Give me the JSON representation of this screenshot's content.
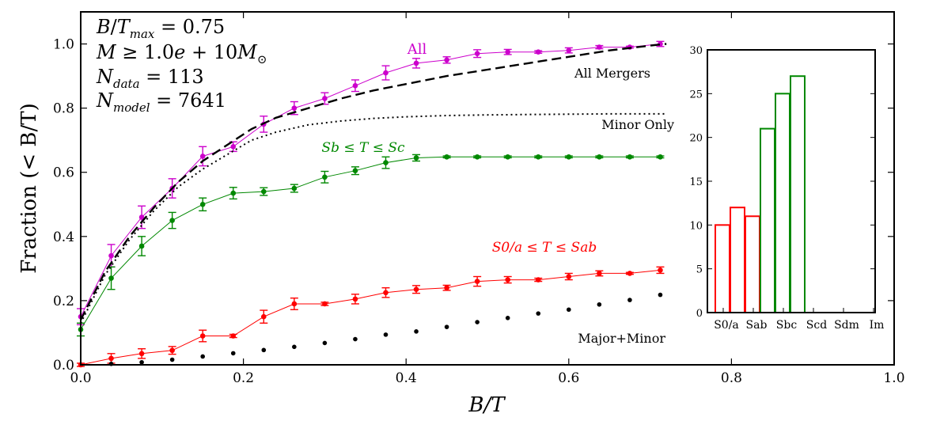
{
  "chart_data": [
    {
      "type": "line",
      "xlabel": "B/T",
      "ylabel": "Fraction (< B/T)",
      "xlim": [
        0.0,
        1.0
      ],
      "ylim": [
        0.0,
        1.1
      ],
      "x_ticks": [
        "0.0",
        "0.2",
        "0.4",
        "0.6",
        "0.8",
        "1.0"
      ],
      "y_ticks": [
        "0.0",
        "0.2",
        "0.4",
        "0.6",
        "0.8",
        "1.0"
      ],
      "info_lines": [
        "B/T_max = 0.75",
        "M ≥ 1.0e+10M_⊙",
        "N_data = 113",
        "N_model = 7641"
      ],
      "series": [
        {
          "name": "All",
          "color": "#cc00cc",
          "style": "solid-with-markers-errorbars",
          "x": [
            0.0,
            0.0375,
            0.075,
            0.1125,
            0.15,
            0.1875,
            0.225,
            0.2625,
            0.3,
            0.3375,
            0.375,
            0.4125,
            0.45,
            0.4875,
            0.525,
            0.5625,
            0.6,
            0.6375,
            0.675,
            0.7125
          ],
          "y": [
            0.15,
            0.34,
            0.46,
            0.55,
            0.65,
            0.68,
            0.75,
            0.8,
            0.83,
            0.87,
            0.91,
            0.94,
            0.95,
            0.97,
            0.975,
            0.975,
            0.98,
            0.99,
            0.99,
            1.0
          ],
          "err": [
            0.025,
            0.035,
            0.035,
            0.03,
            0.03,
            0.015,
            0.025,
            0.02,
            0.018,
            0.018,
            0.022,
            0.015,
            0.01,
            0.012,
            0.008,
            0.004,
            0.008,
            0.005,
            0.003,
            0.008
          ]
        },
        {
          "name": "Sb ≤ T ≤ Sc",
          "color": "#008800",
          "style": "solid-with-markers-errorbars",
          "x": [
            0.0,
            0.0375,
            0.075,
            0.1125,
            0.15,
            0.1875,
            0.225,
            0.2625,
            0.3,
            0.3375,
            0.375,
            0.4125,
            0.45,
            0.4875,
            0.525,
            0.5625,
            0.6,
            0.6375,
            0.675,
            0.7125
          ],
          "y": [
            0.11,
            0.27,
            0.37,
            0.45,
            0.5,
            0.535,
            0.54,
            0.55,
            0.585,
            0.605,
            0.63,
            0.645,
            0.648,
            0.648,
            0.648,
            0.648,
            0.648,
            0.648,
            0.648,
            0.648
          ],
          "err": [
            0.02,
            0.035,
            0.03,
            0.025,
            0.02,
            0.018,
            0.012,
            0.012,
            0.018,
            0.012,
            0.018,
            0.01,
            0.003,
            0.003,
            0.003,
            0.003,
            0.003,
            0.003,
            0.003,
            0.003
          ]
        },
        {
          "name": "S0/a ≤ T ≤ Sab",
          "color": "#ff0000",
          "style": "solid-with-markers-errorbars",
          "x": [
            0.0,
            0.0375,
            0.075,
            0.1125,
            0.15,
            0.1875,
            0.225,
            0.2625,
            0.3,
            0.3375,
            0.375,
            0.4125,
            0.45,
            0.4875,
            0.525,
            0.5625,
            0.6,
            0.6375,
            0.675,
            0.7125
          ],
          "y": [
            0.0,
            0.02,
            0.035,
            0.045,
            0.09,
            0.09,
            0.15,
            0.19,
            0.19,
            0.205,
            0.225,
            0.235,
            0.24,
            0.26,
            0.265,
            0.265,
            0.275,
            0.285,
            0.285,
            0.295
          ],
          "err": [
            0.005,
            0.015,
            0.015,
            0.012,
            0.018,
            0.005,
            0.02,
            0.018,
            0.005,
            0.015,
            0.015,
            0.012,
            0.008,
            0.015,
            0.01,
            0.005,
            0.01,
            0.008,
            0.003,
            0.01
          ]
        },
        {
          "name": "Major+Minor",
          "color": "#000000",
          "style": "dots",
          "x": [
            0.0375,
            0.075,
            0.1125,
            0.15,
            0.1875,
            0.225,
            0.2625,
            0.3,
            0.3375,
            0.375,
            0.4125,
            0.45,
            0.4875,
            0.525,
            0.5625,
            0.6,
            0.6375,
            0.675,
            0.7125
          ],
          "y": [
            0.003,
            0.008,
            0.016,
            0.026,
            0.036,
            0.046,
            0.056,
            0.068,
            0.08,
            0.094,
            0.104,
            0.118,
            0.133,
            0.146,
            0.16,
            0.172,
            0.188,
            0.202,
            0.218
          ]
        },
        {
          "name": "All Mergers",
          "color": "#000000",
          "style": "dashed",
          "x": [
            0.0,
            0.03,
            0.06,
            0.09,
            0.12,
            0.15,
            0.18,
            0.21,
            0.24,
            0.28,
            0.32,
            0.36,
            0.4,
            0.45,
            0.5,
            0.55,
            0.6,
            0.65,
            0.7,
            0.72
          ],
          "y": [
            0.14,
            0.29,
            0.4,
            0.49,
            0.57,
            0.635,
            0.685,
            0.735,
            0.77,
            0.8,
            0.83,
            0.855,
            0.875,
            0.9,
            0.92,
            0.94,
            0.96,
            0.98,
            0.995,
            1.0
          ]
        },
        {
          "name": "Minor Only",
          "color": "#000000",
          "style": "dotted",
          "x": [
            0.0,
            0.03,
            0.06,
            0.09,
            0.12,
            0.15,
            0.18,
            0.21,
            0.24,
            0.28,
            0.32,
            0.36,
            0.4,
            0.45,
            0.5,
            0.55,
            0.6,
            0.65,
            0.7,
            0.72
          ],
          "y": [
            0.13,
            0.28,
            0.39,
            0.48,
            0.555,
            0.61,
            0.655,
            0.7,
            0.725,
            0.748,
            0.76,
            0.768,
            0.773,
            0.777,
            0.779,
            0.78,
            0.781,
            0.782,
            0.782,
            0.782
          ]
        }
      ],
      "labels": [
        {
          "text": "All",
          "series": 0
        },
        {
          "text": "All Mergers",
          "series": 4
        },
        {
          "text": "Minor Only",
          "series": 5
        },
        {
          "text": "Sb ≤ T ≤ Sc",
          "series": 1
        },
        {
          "text": "S0/a ≤ T ≤ Sab",
          "series": 2
        },
        {
          "text": "Major+Minor",
          "series": 3
        }
      ]
    },
    {
      "type": "bar",
      "categories": [
        "S0/a",
        "Sab",
        "Sbc",
        "Scd",
        "Sdm",
        "Im"
      ],
      "ylim": [
        0,
        30
      ],
      "y_ticks": [
        "0",
        "5",
        "10",
        "15",
        "20",
        "25",
        "30"
      ],
      "bars": [
        {
          "x": 0.0,
          "value": 10,
          "color": "#ff0000"
        },
        {
          "x": 0.5,
          "value": 12,
          "color": "#ff0000"
        },
        {
          "x": 1.0,
          "value": 11,
          "color": "#ff0000"
        },
        {
          "x": 1.5,
          "value": 21,
          "color": "#008800"
        },
        {
          "x": 2.0,
          "value": 25,
          "color": "#008800"
        },
        {
          "x": 2.5,
          "value": 27,
          "color": "#008800"
        }
      ]
    }
  ]
}
